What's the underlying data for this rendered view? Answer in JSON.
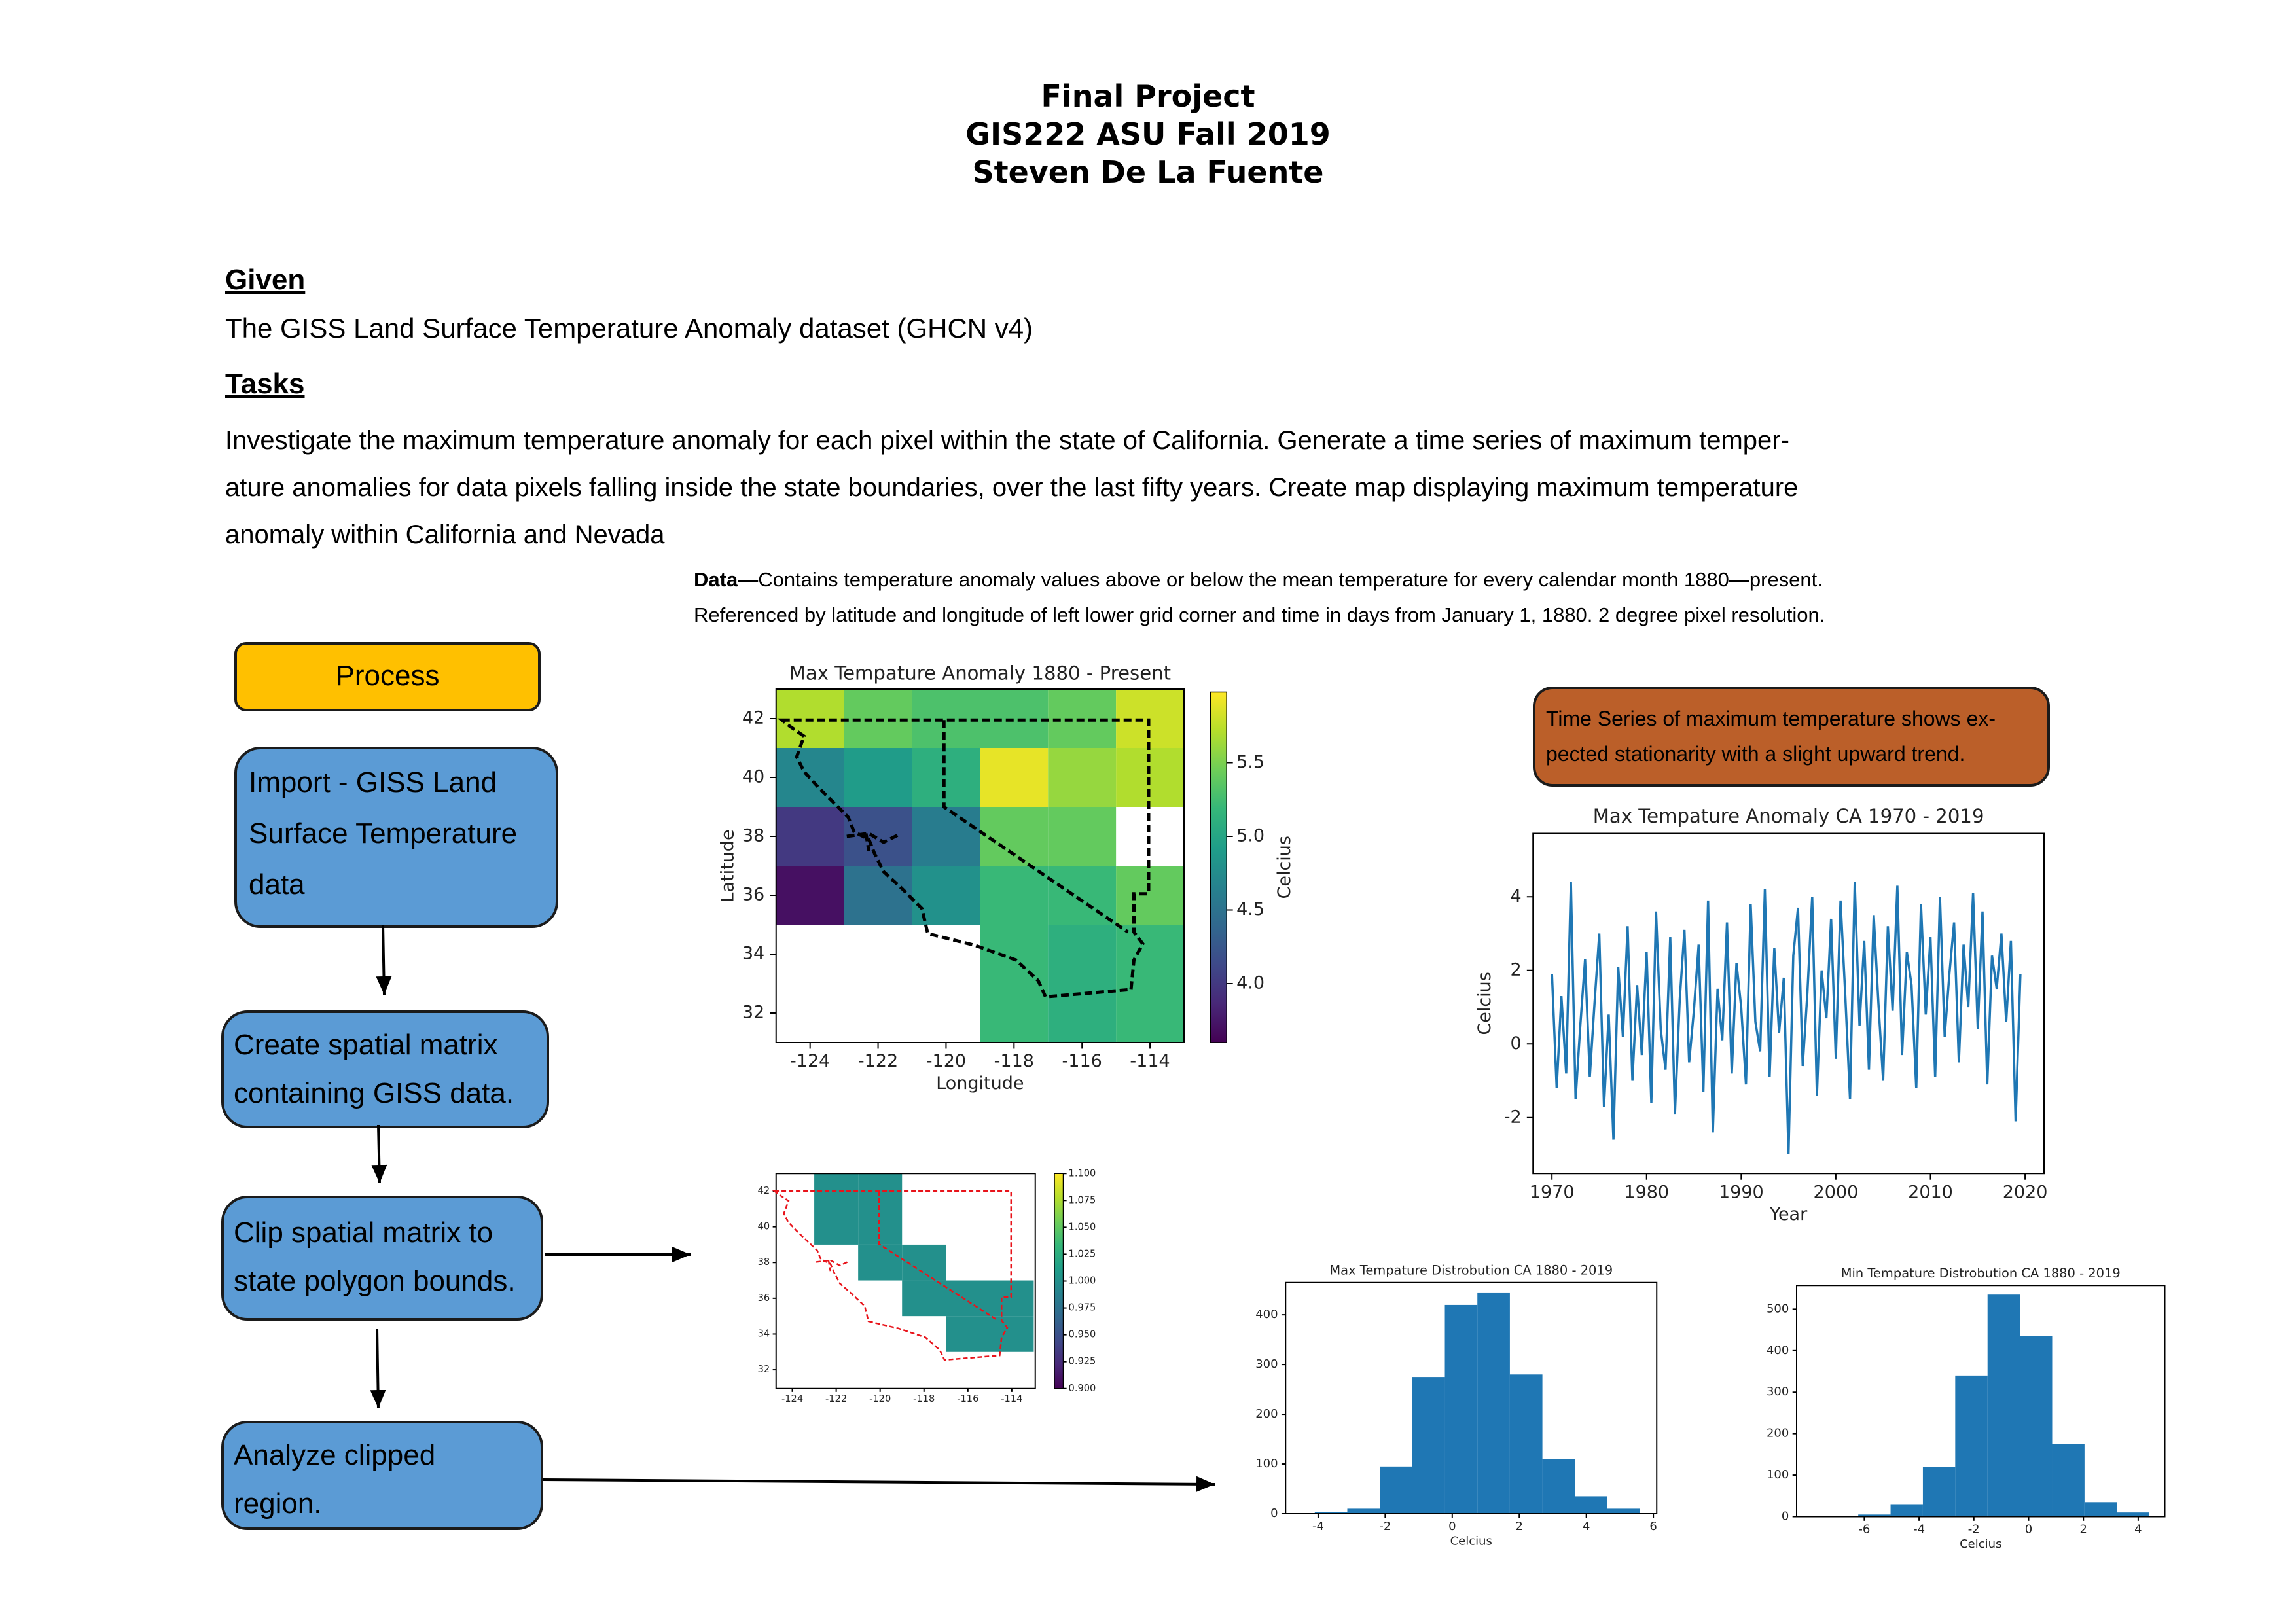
{
  "header": {
    "lines": [
      "Final Project",
      "GIS222 ASU Fall 2019",
      "Steven De La Fuente"
    ]
  },
  "given": {
    "heading": "Given",
    "text": "The GISS Land Surface Temperature Anomaly dataset (GHCN v4)"
  },
  "tasks": {
    "heading": "Tasks",
    "lines": [
      "Investigate the maximum temperature anomaly for each pixel within the state of California. Generate a time series of maximum temper-",
      "ature anomalies for data pixels falling inside the state boundaries, over the last fifty years. Create map displaying maximum temperature",
      "anomaly within California and Nevada"
    ]
  },
  "data_note": {
    "label": "Data",
    "line1": "—Contains temperature anomaly values above or below the mean temperature for every  calendar month 1880—present.",
    "line2": "Referenced by latitude and longitude of  left lower grid corner and time in days from January 1, 1880. 2 degree pixel resolution."
  },
  "process": {
    "label": "Process",
    "steps": [
      [
        "Import - GISS Land",
        "Surface Temperature",
        "data"
      ],
      [
        "Create spatial matrix",
        "containing GISS data."
      ],
      [
        "Clip spatial matrix to",
        "state polygon bounds."
      ],
      [
        "Analyze clipped",
        "region."
      ]
    ]
  },
  "finding": {
    "lines": [
      "Time Series of maximum temperature shows ex-",
      "pected stationarity with a slight upward trend."
    ]
  },
  "chart_data": [
    {
      "type": "heatmap",
      "title": "Max Tempature Anomaly 1880 - Present",
      "x_label": "Longitude",
      "y_label": "Latitude",
      "x": [
        -124,
        -122,
        -120,
        -118,
        -116,
        -114
      ],
      "y": [
        42,
        40,
        38,
        36,
        34,
        32
      ],
      "values": [
        [
          5.7,
          5.4,
          5.3,
          5.3,
          5.4,
          5.8
        ],
        [
          4.7,
          4.9,
          5.1,
          5.9,
          5.6,
          5.7
        ],
        [
          4.0,
          4.2,
          4.6,
          5.4,
          5.4,
          null
        ],
        [
          3.7,
          4.5,
          4.8,
          5.2,
          5.2,
          5.4
        ],
        [
          null,
          null,
          null,
          5.2,
          5.1,
          5.2
        ],
        [
          null,
          null,
          null,
          5.2,
          5.1,
          5.2
        ]
      ],
      "xlim": [
        -125,
        -113
      ],
      "ylim": [
        31,
        43
      ],
      "xticks": [
        -124,
        -122,
        -120,
        -118,
        -116,
        -114
      ],
      "yticks": [
        32,
        34,
        36,
        38,
        40,
        42
      ],
      "colormap": "viridis",
      "colorbar": {
        "label": "Celcius",
        "clim": [
          3.6,
          5.98
        ],
        "ticks": [
          {
            "value": 4,
            "label": "4.0"
          },
          4.5,
          {
            "value": 5,
            "label": "5.0"
          },
          5.5
        ]
      }
    },
    {
      "type": "heatmap",
      "x": [
        -124,
        -122,
        -120,
        -118,
        -116,
        -114
      ],
      "y": [
        42,
        40,
        38,
        36,
        34,
        32
      ],
      "values": [
        [
          null,
          1.0,
          1.0,
          null,
          null,
          null
        ],
        [
          null,
          1.0,
          1.0,
          null,
          null,
          null
        ],
        [
          null,
          null,
          1.0,
          1.0,
          null,
          null
        ],
        [
          null,
          null,
          null,
          1.0,
          1.0,
          1.0
        ],
        [
          null,
          null,
          null,
          null,
          1.0,
          1.0
        ],
        [
          null,
          null,
          null,
          null,
          null,
          null
        ]
      ],
      "xlim": [
        -124.74,
        -112.93
      ],
      "ylim": [
        30.95,
        42.98
      ],
      "xticks": [
        -124,
        -122,
        -120,
        -118,
        -116,
        -114
      ],
      "yticks": [
        32,
        34,
        36,
        38,
        40,
        42
      ],
      "colormap": "viridis",
      "colorbar": {
        "clim": [
          0.9,
          1.1
        ],
        "ticks": [
          {
            "value": 0.9,
            "label": "0.900"
          },
          {
            "value": 0.925,
            "label": "0.925"
          },
          {
            "value": 0.95,
            "label": "0.950"
          },
          {
            "value": 0.975,
            "label": "0.975"
          },
          {
            "value": 1.0,
            "label": "1.000"
          },
          {
            "value": 1.025,
            "label": "1.025"
          },
          {
            "value": 1.05,
            "label": "1.050"
          },
          {
            "value": 1.075,
            "label": "1.075"
          },
          {
            "value": 1.1,
            "label": "1.100"
          }
        ]
      }
    },
    {
      "type": "line",
      "title": "Max Tempature Anomaly CA 1970 - 2019",
      "x_label": "Year",
      "y_label": "Celcius",
      "color": "#1f77b4",
      "x": [
        1970,
        1970.5,
        1971,
        1971.5,
        1972,
        1972.5,
        1973,
        1973.5,
        1974,
        1974.5,
        1975,
        1975.5,
        1976,
        1976.5,
        1977,
        1977.5,
        1978,
        1978.5,
        1979,
        1979.5,
        1980,
        1980.5,
        1981,
        1981.5,
        1982,
        1982.5,
        1983,
        1983.5,
        1984,
        1984.5,
        1985,
        1985.5,
        1986,
        1986.5,
        1987,
        1987.5,
        1988,
        1988.5,
        1989,
        1989.5,
        1990,
        1990.5,
        1991,
        1991.5,
        1992,
        1992.5,
        1993,
        1993.5,
        1994,
        1994.5,
        1995,
        1995.5,
        1996,
        1996.5,
        1997,
        1997.5,
        1998,
        1998.5,
        1999,
        1999.5,
        2000,
        2000.5,
        2001,
        2001.5,
        2002,
        2002.5,
        2003,
        2003.5,
        2004,
        2004.5,
        2005,
        2005.5,
        2006,
        2006.5,
        2007,
        2007.5,
        2008,
        2008.5,
        2009,
        2009.5,
        2010,
        2010.5,
        2011,
        2011.5,
        2012,
        2012.5,
        2013,
        2013.5,
        2014,
        2014.5,
        2015,
        2015.5,
        2016,
        2016.5,
        2017,
        2017.5,
        2018,
        2018.5,
        2019,
        2019.5
      ],
      "values": [
        1.9,
        -1.2,
        1.3,
        -0.8,
        4.4,
        -1.5,
        0.5,
        2.3,
        -0.9,
        1.1,
        3.0,
        -1.7,
        0.8,
        -2.6,
        2.1,
        0.2,
        3.2,
        -1.0,
        1.6,
        -0.3,
        2.5,
        -1.6,
        3.6,
        0.4,
        -0.7,
        2.9,
        -1.9,
        1.2,
        3.1,
        -0.5,
        0.9,
        2.7,
        -1.3,
        3.9,
        -2.4,
        1.5,
        0.1,
        3.3,
        -0.8,
        2.2,
        1.0,
        -1.1,
        3.8,
        0.6,
        -0.2,
        4.2,
        -0.9,
        2.6,
        0.3,
        1.8,
        -3.0,
        2.4,
        3.7,
        -0.6,
        1.4,
        4.0,
        -1.4,
        2.0,
        0.7,
        3.4,
        -0.4,
        3.9,
        1.3,
        -1.5,
        4.4,
        0.5,
        2.8,
        -0.7,
        3.5,
        1.1,
        -1.0,
        3.2,
        0.9,
        4.3,
        -0.3,
        2.5,
        1.6,
        -1.2,
        3.8,
        0.8,
        2.9,
        -0.9,
        4.0,
        0.2,
        1.9,
        3.3,
        -0.5,
        2.7,
        1.0,
        4.1,
        0.4,
        3.6,
        -1.1,
        2.4,
        1.5,
        3.0,
        0.6,
        2.8,
        -2.1,
        1.9
      ],
      "xlim": [
        1968,
        2022
      ],
      "ylim": [
        -3.52,
        5.72
      ],
      "xticks": [
        1970,
        1980,
        1990,
        2000,
        2010,
        2020
      ],
      "yticks": [
        -2,
        0,
        2,
        4
      ]
    },
    {
      "type": "histogram",
      "title": "Max Tempature Distrobution CA 1880 - 2019",
      "x_label": "Celcius",
      "color": "#1f77b4",
      "bins": [
        -4.1,
        -3.13,
        -2.16,
        -1.19,
        -0.22,
        0.75,
        1.72,
        2.69,
        3.66,
        4.63,
        5.6
      ],
      "values": [
        3,
        10,
        95,
        275,
        420,
        445,
        280,
        110,
        35,
        10
      ],
      "xlim": [
        -4.97,
        6.1
      ],
      "ylim": [
        0,
        465
      ],
      "xticks": [
        -4,
        -2,
        0,
        2,
        4,
        6
      ],
      "yticks": [
        0,
        100,
        200,
        300,
        400
      ]
    },
    {
      "type": "histogram",
      "title": "Min Tempature Distrobution CA 1880 - 2019",
      "x_label": "Celcius",
      "color": "#1f77b4",
      "bins": [
        -7.4,
        -6.22,
        -5.04,
        -3.86,
        -2.68,
        -1.5,
        -0.32,
        0.86,
        2.04,
        3.22,
        4.4
      ],
      "values": [
        2,
        5,
        30,
        120,
        340,
        535,
        435,
        175,
        35,
        10
      ],
      "xlim": [
        -8.47,
        4.97
      ],
      "ylim": [
        0,
        557
      ],
      "xticks": [
        -6,
        -4,
        -2,
        0,
        2,
        4
      ],
      "yticks": [
        0,
        100,
        200,
        300,
        400,
        500
      ]
    }
  ]
}
